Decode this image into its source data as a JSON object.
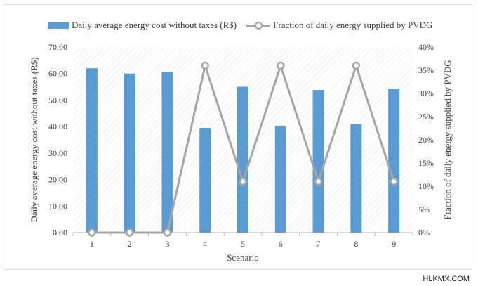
{
  "chart_data": {
    "type": "bar+line",
    "categories": [
      "1",
      "2",
      "3",
      "4",
      "5",
      "6",
      "7",
      "8",
      "9"
    ],
    "series": [
      {
        "name": "Daily average energy cost without taxes (R$)",
        "type": "bar",
        "axis": "left",
        "color": "#5b9bd5",
        "values": [
          62.0,
          60.0,
          60.6,
          39.5,
          55.0,
          40.3,
          53.8,
          41.0,
          54.3
        ]
      },
      {
        "name": "Fraction of daily energy supplied by PVDG",
        "type": "line",
        "axis": "right",
        "color": "#a5a5a5",
        "marker": "open-circle",
        "values": [
          0,
          0,
          0,
          36,
          11,
          36,
          11,
          36,
          11
        ]
      }
    ],
    "xlabel": "Scenario",
    "ylabel_left": "Daily average energy cost without taxes (R$)",
    "ylabel_right": "Fraction of daily energy supplied  by PVDG",
    "ylim_left": [
      0,
      70
    ],
    "ylim_right": [
      0,
      40
    ],
    "yticks_left": [
      "0.00",
      "10.00",
      "20.00",
      "30.00",
      "40.00",
      "50.00",
      "60.00",
      "70.00"
    ],
    "yticks_right": [
      "0%",
      "5%",
      "10%",
      "15%",
      "20%",
      "25%",
      "30%",
      "35%",
      "40%"
    ],
    "legend_position": "top",
    "plot_background": "diagonal-hatch"
  },
  "watermark": "HLKMX.COM"
}
